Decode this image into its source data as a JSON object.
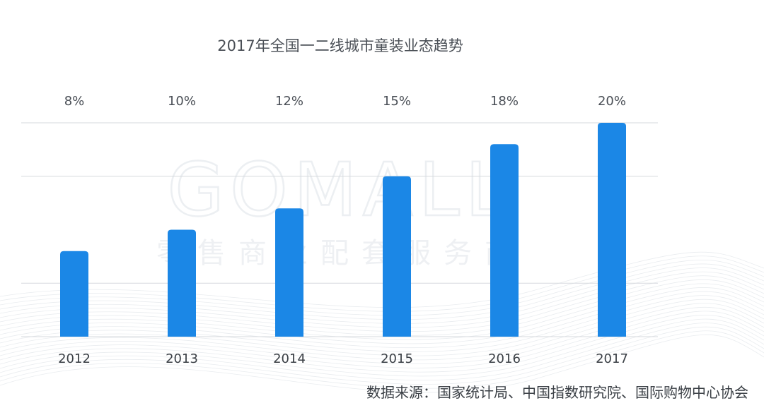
{
  "chart_data": {
    "type": "bar",
    "title": "2017年全国一二线城市童装业态趋势",
    "categories": [
      "2012",
      "2013",
      "2014",
      "2015",
      "2016",
      "2017"
    ],
    "values": [
      8,
      10,
      12,
      15,
      18,
      20
    ],
    "data_labels": [
      "8%",
      "10%",
      "12%",
      "15%",
      "18%",
      "20%"
    ],
    "xlabel": "",
    "ylabel": "",
    "ylim": [
      0,
      20
    ],
    "grid": true,
    "legend": "none",
    "bar_color": "#1b87e6"
  },
  "watermark": {
    "brand": "GOMALL",
    "tagline": "零售商业配套服务商"
  },
  "source": "数据来源：国家统计局、中国指数研究院、国际购物中心协会"
}
